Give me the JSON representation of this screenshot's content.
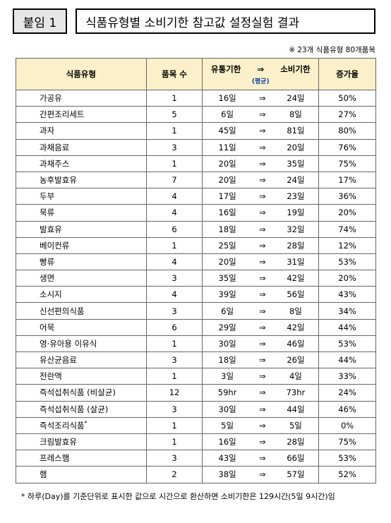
{
  "header": {
    "badge": "붙임 1",
    "title": "식품유형별 소비기한 참고값 설정실험 결과"
  },
  "note": "※ 23개 식품유형 80개품목",
  "columns": {
    "type": "식품유형",
    "count": "품목 수",
    "dist_label": "유통기한",
    "arrow": "⇒",
    "cons_label": "소비기한",
    "avg": "(평균)",
    "rate": "증가율"
  },
  "rows": [
    {
      "type": "가공유",
      "count": "1",
      "dist": "16일",
      "cons": "24일",
      "rate": "50%"
    },
    {
      "type": "간편조리세트",
      "count": "5",
      "dist": "6일",
      "cons": "8일",
      "rate": "27%"
    },
    {
      "type": "과자",
      "count": "1",
      "dist": "45일",
      "cons": "81일",
      "rate": "80%"
    },
    {
      "type": "과채음료",
      "count": "3",
      "dist": "11일",
      "cons": "20일",
      "rate": "76%"
    },
    {
      "type": "과채주스",
      "count": "1",
      "dist": "20일",
      "cons": "35일",
      "rate": "75%"
    },
    {
      "type": "농후발효유",
      "count": "7",
      "dist": "20일",
      "cons": "24일",
      "rate": "17%"
    },
    {
      "type": "두부",
      "count": "4",
      "dist": "17일",
      "cons": "23일",
      "rate": "36%"
    },
    {
      "type": "묵류",
      "count": "4",
      "dist": "16일",
      "cons": "19일",
      "rate": "20%"
    },
    {
      "type": "발효유",
      "count": "6",
      "dist": "18일",
      "cons": "32일",
      "rate": "74%"
    },
    {
      "type": "베이컨류",
      "count": "1",
      "dist": "25일",
      "cons": "28일",
      "rate": "12%"
    },
    {
      "type": "빵류",
      "count": "4",
      "dist": "20일",
      "cons": "31일",
      "rate": "53%"
    },
    {
      "type": "생면",
      "count": "3",
      "dist": "35일",
      "cons": "42일",
      "rate": "20%"
    },
    {
      "type": "소시지",
      "count": "4",
      "dist": "39일",
      "cons": "56일",
      "rate": "43%"
    },
    {
      "type": "신선편의식품",
      "count": "3",
      "dist": "6일",
      "cons": "8일",
      "rate": "34%"
    },
    {
      "type": "어묵",
      "count": "6",
      "dist": "29일",
      "cons": "42일",
      "rate": "44%"
    },
    {
      "type": "영·유아용 이유식",
      "count": "1",
      "dist": "30일",
      "cons": "46일",
      "rate": "53%"
    },
    {
      "type": "유산균음료",
      "count": "3",
      "dist": "18일",
      "cons": "26일",
      "rate": "44%"
    },
    {
      "type": "전란액",
      "count": "1",
      "dist": "3일",
      "cons": "4일",
      "rate": "33%"
    },
    {
      "type": "즉석섭취식품 (비살균)",
      "count": "12",
      "dist": "59hr",
      "cons": "73hr",
      "rate": "24%"
    },
    {
      "type": "즉석섭취식품 (살균)",
      "count": "3",
      "dist": "30일",
      "cons": "44일",
      "rate": "46%"
    },
    {
      "type": "즉석조리식품",
      "sup": "*",
      "count": "1",
      "dist": "5일",
      "cons": "5일",
      "rate": "0%"
    },
    {
      "type": "크림발효유",
      "count": "1",
      "dist": "16일",
      "cons": "28일",
      "rate": "75%"
    },
    {
      "type": "프레스햄",
      "count": "3",
      "dist": "43일",
      "cons": "66일",
      "rate": "53%"
    },
    {
      "type": "햄",
      "count": "2",
      "dist": "38일",
      "cons": "57일",
      "rate": "52%"
    }
  ],
  "footnote": "* 하루(Day)를 기준단위로 표시한 값으로 시간으로 환산하면 소비기한은 129시간(5일 9시간)임"
}
